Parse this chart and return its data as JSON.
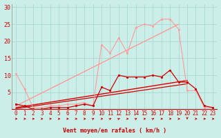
{
  "background_color": "#cceee8",
  "grid_color": "#aad8d2",
  "xlabel": "Vent moyen/en rafales ( km/h )",
  "x_labels": [
    "0",
    "1",
    "2",
    "3",
    "4",
    "5",
    "6",
    "7",
    "8",
    "9",
    "10",
    "11",
    "12",
    "13",
    "14",
    "15",
    "16",
    "17",
    "18",
    "19",
    "20",
    "21",
    "22",
    "23"
  ],
  "ylim": [
    0,
    31
  ],
  "yticks": [
    5,
    10,
    15,
    20,
    25,
    30
  ],
  "xlim": [
    -0.5,
    23.5
  ],
  "series": [
    {
      "name": "rafales_light",
      "color": "#ff9999",
      "linewidth": 0.8,
      "marker": "o",
      "markersize": 1.8,
      "data_x": [
        0,
        1,
        2,
        3,
        4,
        5,
        6,
        7,
        8,
        9,
        10,
        11,
        12,
        13,
        14,
        15,
        16,
        17,
        18,
        19,
        20,
        21,
        22,
        23
      ],
      "data_y": [
        10.5,
        6.0,
        0.5,
        0.5,
        1.0,
        1.0,
        1.5,
        1.5,
        2.0,
        1.0,
        19.0,
        16.5,
        21.0,
        16.5,
        24.0,
        25.0,
        24.5,
        26.5,
        26.5,
        23.5,
        5.5,
        5.5,
        0.5,
        0.5
      ]
    },
    {
      "name": "trend_rafales_upper",
      "color": "#ff9999",
      "linewidth": 1.0,
      "marker": null,
      "data_x": [
        0,
        19
      ],
      "data_y": [
        1.0,
        25.0
      ]
    },
    {
      "name": "trend_rafales_lower",
      "color": "#ff9999",
      "linewidth": 1.0,
      "marker": null,
      "data_x": [
        0,
        19
      ],
      "data_y": [
        0.5,
        8.0
      ]
    },
    {
      "name": "vent_moyen",
      "color": "#cc0000",
      "linewidth": 0.9,
      "marker": "o",
      "markersize": 2.0,
      "data_x": [
        0,
        1,
        2,
        3,
        4,
        5,
        6,
        7,
        8,
        9,
        10,
        11,
        12,
        13,
        14,
        15,
        16,
        17,
        18,
        19,
        20,
        21,
        22,
        23
      ],
      "data_y": [
        1.5,
        1.0,
        0.0,
        0.0,
        0.5,
        0.5,
        0.5,
        1.0,
        1.5,
        1.0,
        6.5,
        5.5,
        10.0,
        9.5,
        9.5,
        9.5,
        10.0,
        9.5,
        11.5,
        8.0,
        8.0,
        6.0,
        1.0,
        0.5
      ]
    },
    {
      "name": "trend_moyen_upper",
      "color": "#cc0000",
      "linewidth": 0.9,
      "marker": null,
      "data_x": [
        0,
        20
      ],
      "data_y": [
        0.5,
        8.5
      ]
    },
    {
      "name": "trend_moyen_lower",
      "color": "#cc0000",
      "linewidth": 0.9,
      "marker": null,
      "data_x": [
        0,
        20
      ],
      "data_y": [
        0.2,
        7.5
      ]
    }
  ],
  "arrows": [
    {
      "x": 0,
      "type": "right"
    },
    {
      "x": 1,
      "type": "right"
    },
    {
      "x": 2,
      "type": "right"
    },
    {
      "x": 3,
      "type": "right"
    },
    {
      "x": 4,
      "type": "right"
    },
    {
      "x": 5,
      "type": "right"
    },
    {
      "x": 6,
      "type": "right"
    },
    {
      "x": 7,
      "type": "right"
    },
    {
      "x": 8,
      "type": "right"
    },
    {
      "x": 9,
      "type": "upright"
    },
    {
      "x": 10,
      "type": "right"
    },
    {
      "x": 11,
      "type": "upright"
    },
    {
      "x": 12,
      "type": "upright"
    },
    {
      "x": 13,
      "type": "right"
    },
    {
      "x": 14,
      "type": "upright"
    },
    {
      "x": 15,
      "type": "right"
    },
    {
      "x": 16,
      "type": "upright"
    },
    {
      "x": 17,
      "type": "right"
    },
    {
      "x": 18,
      "type": "right"
    },
    {
      "x": 19,
      "type": "right"
    },
    {
      "x": 20,
      "type": "down"
    },
    {
      "x": 21,
      "type": "right"
    },
    {
      "x": 22,
      "type": "right"
    },
    {
      "x": 23,
      "type": "right"
    }
  ],
  "arrow_color": "#cc0000",
  "xlabel_color": "#cc0000",
  "xlabel_fontsize": 6.0,
  "tick_color": "#cc0000",
  "tick_fontsize": 5.5,
  "ytick_fontsize": 6.0
}
